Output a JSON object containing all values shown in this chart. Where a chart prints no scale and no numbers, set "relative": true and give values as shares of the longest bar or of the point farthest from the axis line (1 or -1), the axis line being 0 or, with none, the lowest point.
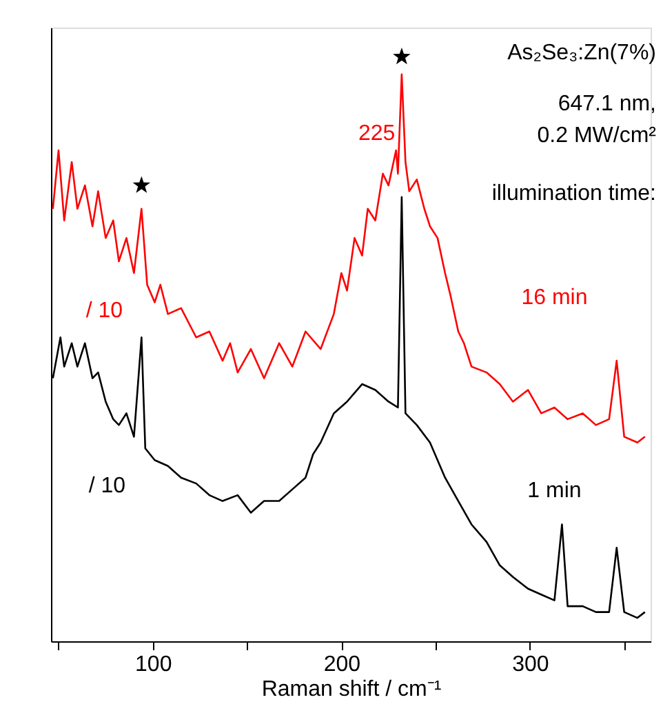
{
  "chart_data": {
    "type": "line",
    "relative": true,
    "xlabel": "Raman shift / cm⁻¹",
    "xlim": [
      46,
      364
    ],
    "xticks": [
      {
        "value": 50,
        "label": null
      },
      100,
      {
        "value": 150,
        "label": null
      },
      200,
      {
        "value": 250,
        "label": null
      },
      300,
      {
        "value": 350,
        "label": null
      }
    ],
    "tick_labels": "x",
    "grid": false,
    "line_style": "solid",
    "series": [
      {
        "name": "16 min",
        "color": "#ff0000",
        "marker": "none",
        "x": [
          47,
          50,
          53,
          57,
          60,
          64,
          68,
          71,
          75,
          79,
          82,
          86,
          90,
          94,
          97,
          101,
          104,
          108,
          115,
          123,
          130,
          137,
          141,
          145,
          152,
          159,
          167,
          174,
          181,
          189,
          196,
          200,
          203,
          207,
          211,
          214,
          218,
          222,
          225,
          229,
          230,
          232,
          234,
          236,
          240,
          244,
          247,
          251,
          255,
          258,
          262,
          265,
          269,
          277,
          284,
          291,
          299,
          306,
          313,
          320,
          328,
          335,
          342,
          346,
          350,
          357,
          361
        ],
        "values": [
          0.74,
          0.84,
          0.72,
          0.82,
          0.74,
          0.78,
          0.71,
          0.77,
          0.69,
          0.72,
          0.65,
          0.69,
          0.63,
          0.74,
          0.61,
          0.58,
          0.61,
          0.56,
          0.57,
          0.52,
          0.53,
          0.48,
          0.51,
          0.46,
          0.5,
          0.45,
          0.51,
          0.47,
          0.53,
          0.5,
          0.56,
          0.63,
          0.6,
          0.69,
          0.66,
          0.74,
          0.72,
          0.8,
          0.78,
          0.84,
          0.8,
          0.97,
          0.82,
          0.77,
          0.79,
          0.74,
          0.71,
          0.69,
          0.63,
          0.59,
          0.53,
          0.51,
          0.47,
          0.46,
          0.44,
          0.41,
          0.43,
          0.39,
          0.4,
          0.38,
          0.39,
          0.37,
          0.38,
          0.48,
          0.35,
          0.34,
          0.35
        ]
      },
      {
        "name": "1 min",
        "color": "#000000",
        "marker": "none",
        "x": [
          47,
          51,
          53,
          57,
          60,
          64,
          68,
          71,
          75,
          79,
          82,
          86,
          90,
          94,
          96,
          101,
          108,
          115,
          123,
          130,
          137,
          145,
          152,
          159,
          167,
          174,
          181,
          185,
          189,
          196,
          203,
          211,
          218,
          225,
          230,
          232,
          234,
          240,
          247,
          255,
          262,
          269,
          277,
          284,
          291,
          299,
          306,
          313,
          317,
          320,
          328,
          335,
          342,
          346,
          350,
          357,
          361
        ],
        "values": [
          0.45,
          0.52,
          0.47,
          0.51,
          0.47,
          0.51,
          0.45,
          0.46,
          0.41,
          0.38,
          0.37,
          0.39,
          0.35,
          0.52,
          0.33,
          0.31,
          0.3,
          0.28,
          0.27,
          0.25,
          0.24,
          0.25,
          0.22,
          0.24,
          0.24,
          0.26,
          0.28,
          0.32,
          0.34,
          0.39,
          0.41,
          0.44,
          0.43,
          0.41,
          0.4,
          0.76,
          0.39,
          0.37,
          0.34,
          0.28,
          0.24,
          0.2,
          0.17,
          0.13,
          0.11,
          0.09,
          0.08,
          0.07,
          0.2,
          0.06,
          0.06,
          0.05,
          0.05,
          0.16,
          0.05,
          0.04,
          0.05
        ]
      },
      {
        "color": "#000000",
        "type": "scatter",
        "marker": "star",
        "x": [
          94,
          232
        ],
        "values": [
          0.78,
          1.0
        ]
      }
    ],
    "annotations": [
      "As₂Se₃:Zn(7%)",
      "647.1 nm,",
      "0.2 MW/cm²",
      "illumination time:",
      {
        "text": "225",
        "x": 230,
        "y": 0.87
      },
      "/ 10",
      "/ 10"
    ]
  }
}
